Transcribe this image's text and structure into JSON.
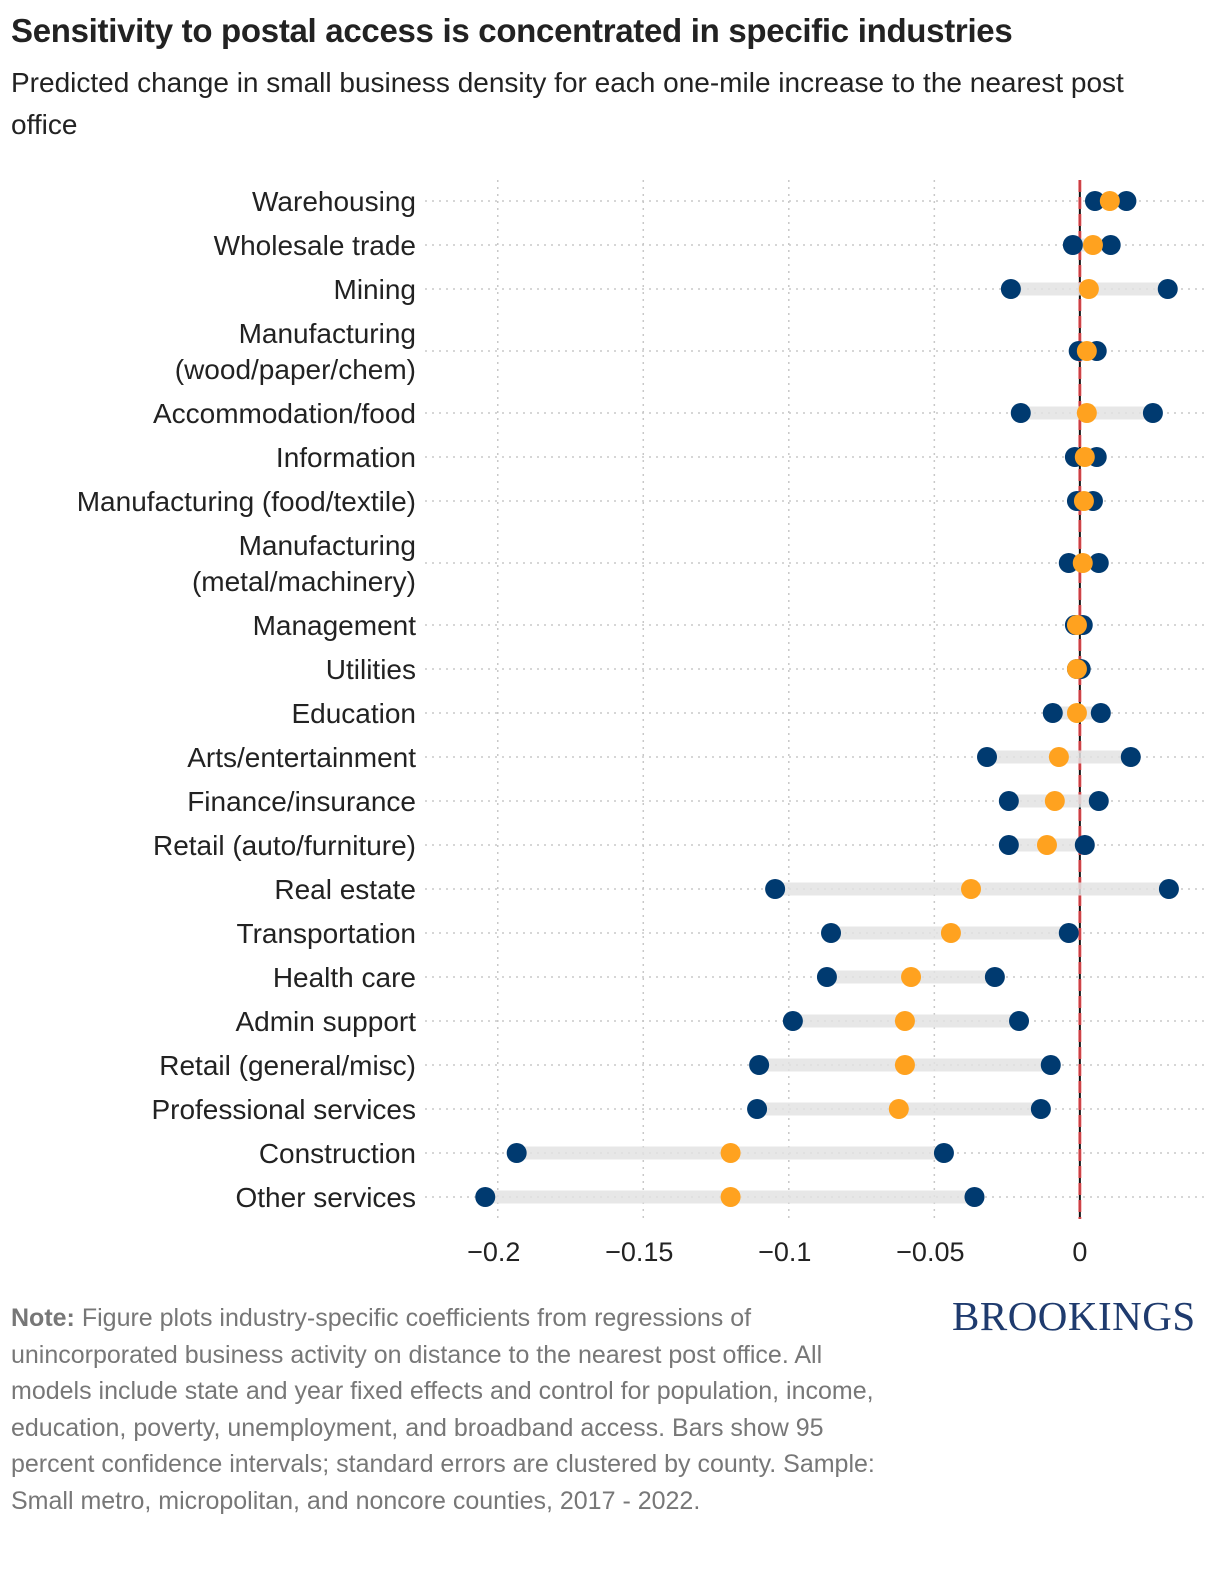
{
  "title": "Sensitivity to postal access is concentrated in specific industries",
  "subtitle": "Predicted change in small business density for each one-mile increase to the nearest post office",
  "note_label": "Note:",
  "note_text": " Figure plots industry-specific coefficients from regressions of unincorporated business activity on distance to the nearest post office. All models include state and year fixed effects and control for population, income, education, poverty, unemployment, and broadband access. Bars show 95 percent confidence intervals; standard errors are clustered by county. Sample: Small metro, micropolitan, and noncore counties, 2017 - 2022.",
  "logo": "BROOKINGS",
  "colors": {
    "ci_end": "#003a70",
    "estimate": "#ffa21f",
    "ci_bar": "#e3e3e3",
    "zero_line": "#e8474c",
    "grid": "#c8c8c8"
  },
  "chart_data": {
    "type": "dot-interval",
    "title": "Sensitivity to postal access is concentrated in specific industries",
    "xlabel": "",
    "ylabel": "",
    "xlim": [
      -0.225,
      0.043
    ],
    "x_ticks": [
      -0.2,
      -0.15,
      -0.1,
      -0.05,
      0
    ],
    "x_tick_labels": [
      "−0.2",
      "−0.15",
      "−0.1",
      "−0.05",
      "0"
    ],
    "grid": true,
    "reference_line": 0,
    "rows": [
      {
        "label": [
          "Warehousing"
        ],
        "low": 0.0052,
        "estimate": 0.0103,
        "high": 0.016
      },
      {
        "label": [
          "Wholesale trade"
        ],
        "low": -0.0024,
        "estimate": 0.0045,
        "high": 0.0106
      },
      {
        "label": [
          "Mining"
        ],
        "low": -0.0237,
        "estimate": 0.0031,
        "high": 0.0302
      },
      {
        "label": [
          "Manufacturing",
          "(wood/paper/chem)"
        ],
        "low": -0.0004,
        "estimate": 0.0024,
        "high": 0.0058
      },
      {
        "label": [
          "Accommodation/food"
        ],
        "low": -0.0203,
        "estimate": 0.0024,
        "high": 0.0251
      },
      {
        "label": [
          "Information"
        ],
        "low": -0.0017,
        "estimate": 0.0017,
        "high": 0.0058
      },
      {
        "label": [
          "Manufacturing (food/textile)"
        ],
        "low": -0.001,
        "estimate": 0.0014,
        "high": 0.0045
      },
      {
        "label": [
          "Manufacturing",
          "(metal/machinery)"
        ],
        "low": -0.0038,
        "estimate": 0.001,
        "high": 0.0065
      },
      {
        "label": [
          "Management"
        ],
        "low": -0.0017,
        "estimate": -0.001,
        "high": 0.001
      },
      {
        "label": [
          "Utilities"
        ],
        "low": -0.001,
        "estimate": -0.001,
        "high": 0.0003
      },
      {
        "label": [
          "Education"
        ],
        "low": -0.0093,
        "estimate": -0.001,
        "high": 0.0072
      },
      {
        "label": [
          "Arts/entertainment"
        ],
        "low": -0.0319,
        "estimate": -0.0072,
        "high": 0.0175
      },
      {
        "label": [
          "Finance/insurance"
        ],
        "low": -0.0244,
        "estimate": -0.0086,
        "high": 0.0065
      },
      {
        "label": [
          "Retail (auto/furniture)"
        ],
        "low": -0.0244,
        "estimate": -0.0113,
        "high": 0.0017
      },
      {
        "label": [
          "Real estate"
        ],
        "low": -0.1047,
        "estimate": -0.0374,
        "high": 0.0306
      },
      {
        "label": [
          "Transportation"
        ],
        "low": -0.0855,
        "estimate": -0.0443,
        "high": -0.0038
      },
      {
        "label": [
          "Health care"
        ],
        "low": -0.0869,
        "estimate": -0.058,
        "high": -0.0292
      },
      {
        "label": [
          "Admin support"
        ],
        "low": -0.0986,
        "estimate": -0.0601,
        "high": -0.0209
      },
      {
        "label": [
          "Retail (general/misc)"
        ],
        "low": -0.1102,
        "estimate": -0.0601,
        "high": -0.01
      },
      {
        "label": [
          "Professional services"
        ],
        "low": -0.1109,
        "estimate": -0.0622,
        "high": -0.0134
      },
      {
        "label": [
          "Construction"
        ],
        "low": -0.1935,
        "estimate": -0.12,
        "high": -0.0467
      },
      {
        "label": [
          "Other services"
        ],
        "low": -0.2043,
        "estimate": -0.12,
        "high": -0.0362
      }
    ]
  }
}
